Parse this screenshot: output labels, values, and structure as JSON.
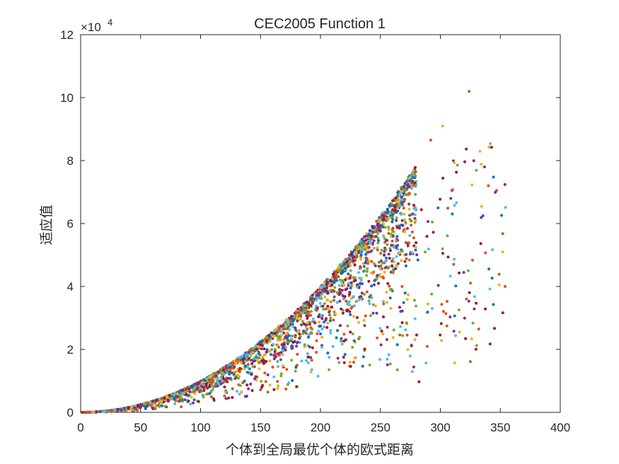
{
  "chart_data": {
    "type": "scatter",
    "title": "CEC2005 Function 1",
    "xlabel": "个体到全局最优个体的欧式距离",
    "ylabel": "适应值",
    "xlim": [
      0,
      400
    ],
    "ylim": [
      0,
      120000
    ],
    "x_ticks": [
      "0",
      "50",
      "100",
      "150",
      "200",
      "250",
      "300",
      "350",
      "400"
    ],
    "y_ticks": [
      "0",
      "2",
      "4",
      "6",
      "8",
      "10",
      "12"
    ],
    "y_exponent": {
      "base": "×10",
      "power": "4"
    },
    "grid": false,
    "envelope": "y ≈ x² (upper bound curve)",
    "envelope_max_x": 280,
    "colors": [
      "#0072BD",
      "#D95319",
      "#EDB120",
      "#7E2F8E",
      "#77AC30",
      "#4DBEEE",
      "#A2142F"
    ],
    "highlighted_points": [
      {
        "x": 324,
        "y": 102000
      },
      {
        "x": 302,
        "y": 91000
      },
      {
        "x": 292,
        "y": 86500
      },
      {
        "x": 333,
        "y": 83000
      },
      {
        "x": 340,
        "y": 72000
      },
      {
        "x": 352,
        "y": 51000
      },
      {
        "x": 354,
        "y": 40000
      },
      {
        "x": 349,
        "y": 40500
      },
      {
        "x": 332,
        "y": 26500
      },
      {
        "x": 316,
        "y": 25500
      }
    ]
  }
}
